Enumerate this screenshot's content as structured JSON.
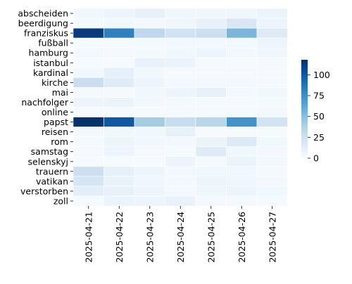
{
  "chart_data": {
    "type": "heatmap",
    "rows": [
      "abscheiden",
      "beerdigung",
      "franziskus",
      "fußball",
      "hamburg",
      "istanbul",
      "kardinal",
      "kirche",
      "mai",
      "nachfolger",
      "online",
      "papst",
      "reisen",
      "rom",
      "samstag",
      "selenskyj",
      "trauern",
      "vatikan",
      "verstorben",
      "zoll"
    ],
    "columns": [
      "2025-04-21",
      "2025-04-22",
      "2025-04-23",
      "2025-04-24",
      "2025-04-25",
      "2025-04-26",
      "2025-04-27"
    ],
    "values": [
      [
        4,
        6,
        9,
        5,
        5,
        5,
        7
      ],
      [
        2,
        4,
        3,
        5,
        9,
        18,
        6
      ],
      [
        113,
        82,
        32,
        23,
        26,
        55,
        15
      ],
      [
        1,
        1,
        2,
        3,
        3,
        3,
        6
      ],
      [
        3,
        2,
        2,
        4,
        6,
        3,
        5
      ],
      [
        1,
        1,
        8,
        7,
        2,
        1,
        2
      ],
      [
        4,
        10,
        4,
        2,
        2,
        2,
        1
      ],
      [
        27,
        14,
        6,
        3,
        3,
        3,
        2
      ],
      [
        2,
        2,
        4,
        6,
        9,
        3,
        4
      ],
      [
        6,
        7,
        3,
        2,
        2,
        2,
        2
      ],
      [
        1,
        1,
        1,
        2,
        2,
        2,
        3
      ],
      [
        118,
        100,
        42,
        28,
        34,
        73,
        22
      ],
      [
        3,
        4,
        4,
        9,
        1,
        1,
        1
      ],
      [
        2,
        6,
        4,
        3,
        7,
        16,
        4
      ],
      [
        2,
        6,
        2,
        1,
        14,
        4,
        3
      ],
      [
        1,
        1,
        1,
        6,
        2,
        7,
        3
      ],
      [
        26,
        10,
        6,
        3,
        4,
        4,
        2
      ],
      [
        20,
        8,
        5,
        3,
        6,
        5,
        3
      ],
      [
        12,
        9,
        6,
        3,
        5,
        6,
        4
      ],
      [
        1,
        7,
        6,
        8,
        2,
        2,
        1
      ]
    ],
    "colorbar": {
      "ticks": [
        0,
        25,
        50,
        75,
        100
      ],
      "min": 0,
      "max": 118
    },
    "colormap": [
      "#f7fbff",
      "#deebf7",
      "#c6dbef",
      "#9ecae1",
      "#6baed6",
      "#4292c6",
      "#2171b5",
      "#08519c",
      "#08306b"
    ],
    "title": "",
    "xlabel": "",
    "ylabel": ""
  }
}
